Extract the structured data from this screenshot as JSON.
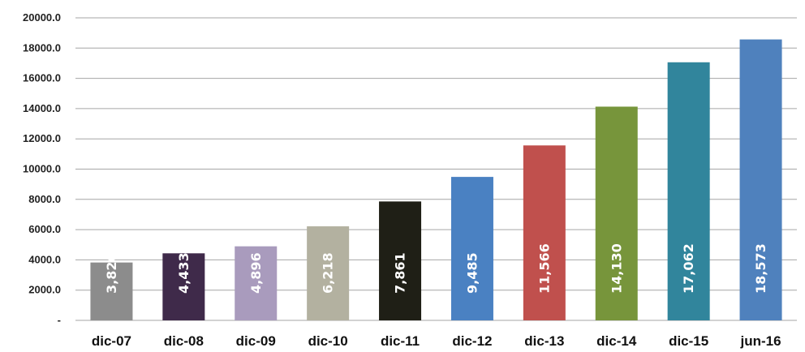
{
  "chart_data": {
    "type": "bar",
    "categories": [
      "dic-07",
      "dic-08",
      "dic-09",
      "dic-10",
      "dic-11",
      "dic-12",
      "dic-13",
      "dic-14",
      "dic-15",
      "jun-16"
    ],
    "values": [
      3826,
      4433,
      4896,
      6218,
      7861,
      9485,
      11566,
      14130,
      17062,
      18573
    ],
    "data_labels": [
      "3,826",
      "4,433",
      "4,896",
      "6,218",
      "7,861",
      "9,485",
      "11,566",
      "14,130",
      "17,062",
      "18,573"
    ],
    "bar_colors": [
      "#8c8c8c",
      "#3f2a4a",
      "#a99bbd",
      "#b3b1a0",
      "#1f1f16",
      "#4a81c2",
      "#c0504d",
      "#77953b",
      "#31859c",
      "#4f81bd"
    ],
    "y_ticks": [
      0,
      2000,
      4000,
      6000,
      8000,
      10000,
      12000,
      14000,
      16000,
      18000,
      20000
    ],
    "y_tick_labels": [
      "-",
      "2000.0",
      "4000.0",
      "6000.0",
      "8000.0",
      "10000.0",
      "12000.0",
      "14000.0",
      "16000.0",
      "18000.0",
      "20000.0"
    ],
    "ylim": [
      0,
      20000
    ],
    "grid": true,
    "legend": "none",
    "title": "",
    "xlabel": "",
    "ylabel": ""
  }
}
